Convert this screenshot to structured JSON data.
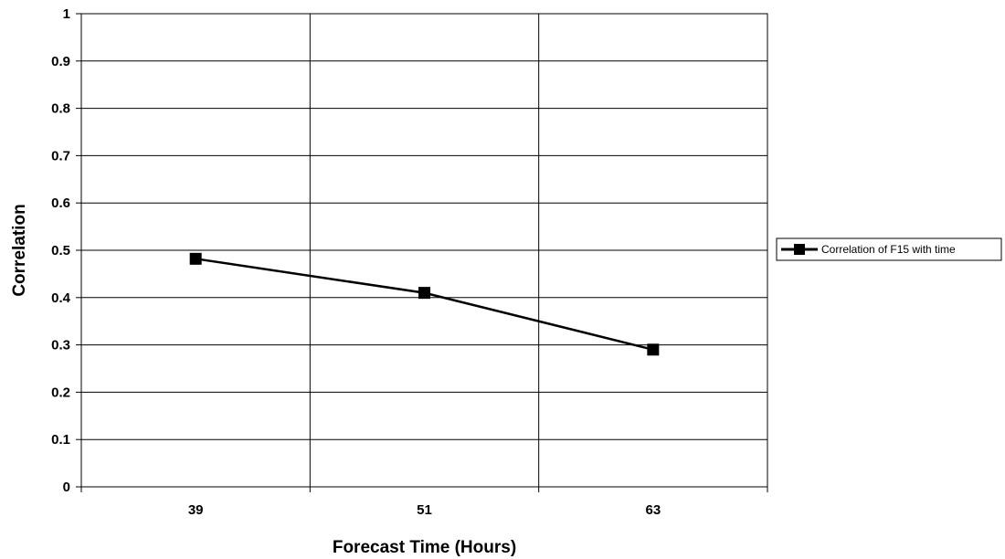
{
  "chart_data": {
    "type": "line",
    "title": "",
    "xlabel": "Forecast Time (Hours)",
    "ylabel": "Correlation",
    "categories": [
      "39",
      "51",
      "63"
    ],
    "series": [
      {
        "name": "Correlation of F15 with time",
        "values": [
          0.482,
          0.41,
          0.29
        ]
      }
    ],
    "ylim": [
      0,
      1
    ],
    "yticks": [
      "0",
      "0.1",
      "0.2",
      "0.3",
      "0.4",
      "0.5",
      "0.6",
      "0.7",
      "0.8",
      "0.9",
      "1"
    ],
    "grid": true,
    "legend_position": "right",
    "colors": {
      "line": "#000000",
      "gridline": "#000000",
      "background": "#ffffff"
    }
  }
}
